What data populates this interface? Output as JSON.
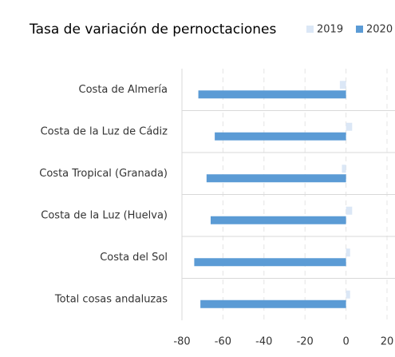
{
  "chart_data": {
    "type": "hbar",
    "title": "Tasa de variación de pernoctaciones",
    "categories": [
      "Costa de Almería",
      "Costa de la Luz de Cádiz",
      "Costa Tropical (Granada)",
      "Costa de la Luz (Huelva)",
      "Costa del Sol",
      "Total cosas andaluzas"
    ],
    "series": [
      {
        "name": "2019",
        "color": "#dbe7f6",
        "values": [
          -3,
          3,
          -2,
          3,
          2,
          2
        ]
      },
      {
        "name": "2020",
        "color": "#5b9bd5",
        "values": [
          -72,
          -64,
          -68,
          -66,
          -74,
          -71
        ]
      }
    ],
    "xlim": [
      -80,
      20
    ],
    "xticks": [
      -80,
      -60,
      -40,
      -20,
      0,
      20
    ],
    "grid": true,
    "legend": "top-right"
  }
}
